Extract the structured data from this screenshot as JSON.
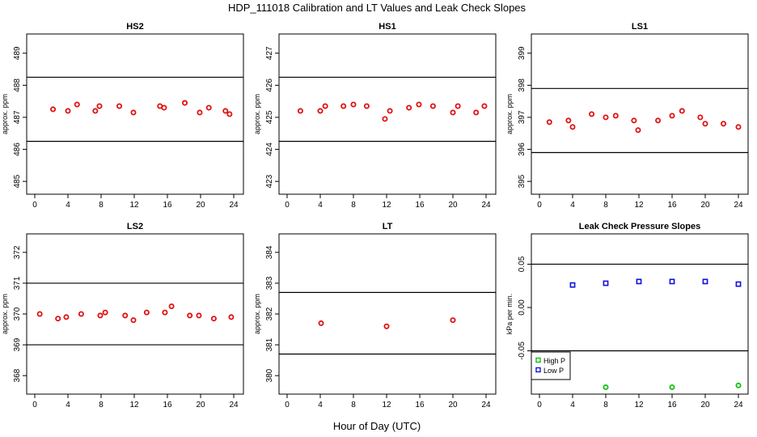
{
  "figure": {
    "title": "HDP_111018  Calibration and LT Values and Leak Check Slopes",
    "xlabel": "Hour of Day (UTC)"
  },
  "colors": {
    "red": "#e01010",
    "blue": "#1010e0",
    "green": "#10c010"
  },
  "chart_data": [
    {
      "type": "scatter",
      "title": "HS2",
      "ylabel": "approx. ppm",
      "xlim": [
        0,
        24
      ],
      "xticks": [
        0,
        4,
        8,
        12,
        16,
        20,
        24
      ],
      "ylim": [
        484.6,
        489.6
      ],
      "yticks": [
        485,
        486,
        487,
        488,
        489
      ],
      "hlines": [
        488.25,
        486.25
      ],
      "series": [
        {
          "marker": "circle",
          "color": "red",
          "points": [
            [
              2.2,
              487.25
            ],
            [
              4.0,
              487.2
            ],
            [
              5.1,
              487.4
            ],
            [
              7.3,
              487.2
            ],
            [
              7.8,
              487.35
            ],
            [
              10.2,
              487.35
            ],
            [
              11.9,
              487.15
            ],
            [
              15.1,
              487.35
            ],
            [
              15.6,
              487.3
            ],
            [
              18.1,
              487.45
            ],
            [
              19.9,
              487.15
            ],
            [
              21.0,
              487.3
            ],
            [
              23.0,
              487.2
            ],
            [
              23.5,
              487.1
            ]
          ]
        }
      ]
    },
    {
      "type": "scatter",
      "title": "HS1",
      "ylabel": "approx. ppm",
      "xlim": [
        0,
        24
      ],
      "xticks": [
        0,
        4,
        8,
        12,
        16,
        20,
        24
      ],
      "ylim": [
        422.6,
        427.6
      ],
      "yticks": [
        423,
        424,
        425,
        426,
        427
      ],
      "hlines": [
        426.25,
        424.25
      ],
      "series": [
        {
          "marker": "circle",
          "color": "red",
          "points": [
            [
              1.6,
              425.2
            ],
            [
              4.0,
              425.2
            ],
            [
              4.6,
              425.35
            ],
            [
              6.8,
              425.35
            ],
            [
              8.0,
              425.4
            ],
            [
              9.6,
              425.35
            ],
            [
              11.8,
              424.95
            ],
            [
              12.4,
              425.2
            ],
            [
              14.7,
              425.3
            ],
            [
              15.9,
              425.4
            ],
            [
              17.6,
              425.35
            ],
            [
              20.0,
              425.15
            ],
            [
              20.6,
              425.35
            ],
            [
              22.8,
              425.15
            ],
            [
              23.8,
              425.35
            ]
          ]
        }
      ]
    },
    {
      "type": "scatter",
      "title": "LS1",
      "ylabel": "approx. ppm",
      "xlim": [
        0,
        24
      ],
      "xticks": [
        0,
        4,
        8,
        12,
        16,
        20,
        24
      ],
      "ylim": [
        394.6,
        399.6
      ],
      "yticks": [
        395,
        396,
        397,
        398,
        399
      ],
      "hlines": [
        397.9,
        395.9
      ],
      "series": [
        {
          "marker": "circle",
          "color": "red",
          "points": [
            [
              1.2,
              396.85
            ],
            [
              3.5,
              396.9
            ],
            [
              4.0,
              396.7
            ],
            [
              6.3,
              397.1
            ],
            [
              8.0,
              397.0
            ],
            [
              9.2,
              397.05
            ],
            [
              11.4,
              396.9
            ],
            [
              11.9,
              396.6
            ],
            [
              14.3,
              396.9
            ],
            [
              16.0,
              397.05
            ],
            [
              17.2,
              397.2
            ],
            [
              19.4,
              397.0
            ],
            [
              20.0,
              396.8
            ],
            [
              22.2,
              396.8
            ],
            [
              24.0,
              396.7
            ]
          ]
        }
      ]
    },
    {
      "type": "scatter",
      "title": "LS2",
      "ylabel": "approx. ppm",
      "xlim": [
        0,
        24
      ],
      "xticks": [
        0,
        4,
        8,
        12,
        16,
        20,
        24
      ],
      "ylim": [
        367.4,
        372.6
      ],
      "yticks": [
        368,
        369,
        370,
        371,
        372
      ],
      "hlines": [
        371.0,
        369.0
      ],
      "series": [
        {
          "marker": "circle",
          "color": "red",
          "points": [
            [
              0.6,
              370.0
            ],
            [
              2.8,
              369.85
            ],
            [
              3.8,
              369.9
            ],
            [
              5.6,
              370.0
            ],
            [
              7.9,
              369.95
            ],
            [
              8.5,
              370.05
            ],
            [
              10.9,
              369.95
            ],
            [
              11.9,
              369.8
            ],
            [
              13.5,
              370.05
            ],
            [
              15.7,
              370.05
            ],
            [
              16.5,
              370.25
            ],
            [
              18.7,
              369.95
            ],
            [
              19.8,
              369.95
            ],
            [
              21.6,
              369.85
            ],
            [
              23.7,
              369.9
            ]
          ]
        }
      ]
    },
    {
      "type": "scatter",
      "title": "LT",
      "ylabel": "approx. ppm",
      "xlim": [
        0,
        24
      ],
      "xticks": [
        0,
        4,
        8,
        12,
        16,
        20,
        24
      ],
      "ylim": [
        379.4,
        384.6
      ],
      "yticks": [
        380,
        381,
        382,
        383,
        384
      ],
      "hlines": [
        382.7,
        380.7
      ],
      "series": [
        {
          "marker": "circle",
          "color": "red",
          "points": [
            [
              4.1,
              381.7
            ],
            [
              12.0,
              381.6
            ],
            [
              20.0,
              381.8
            ]
          ]
        }
      ]
    },
    {
      "type": "scatter",
      "title": "Leak Check Pressure Slopes",
      "ylabel": "kPa per min.",
      "xlim": [
        0,
        24
      ],
      "xticks": [
        0,
        4,
        8,
        12,
        16,
        20,
        24
      ],
      "ylim": [
        -0.1,
        0.085
      ],
      "yticks": [
        -0.05,
        0.0,
        0.05
      ],
      "ytick_labels": [
        "-0.05",
        "0.00",
        "0.05"
      ],
      "hlines": [
        0.05,
        -0.05
      ],
      "legend": {
        "position": "bottom-left",
        "entries": [
          {
            "label": "High P",
            "color": "green"
          },
          {
            "label": "Low P",
            "color": "blue"
          }
        ]
      },
      "series": [
        {
          "name": "High P",
          "marker": "circle",
          "color": "green",
          "points": [
            [
              8,
              -0.092
            ],
            [
              16,
              -0.092
            ],
            [
              24,
              -0.09
            ]
          ]
        },
        {
          "name": "Low P",
          "marker": "square",
          "color": "blue",
          "points": [
            [
              4,
              0.026
            ],
            [
              8,
              0.028
            ],
            [
              12,
              0.03
            ],
            [
              16,
              0.03
            ],
            [
              20,
              0.03
            ],
            [
              24,
              0.027
            ]
          ]
        }
      ]
    }
  ]
}
